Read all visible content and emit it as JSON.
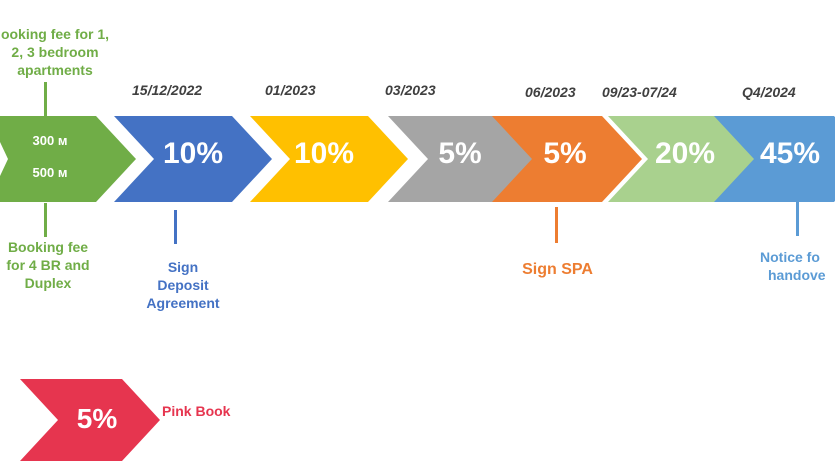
{
  "colors": {
    "green": "#70AD47",
    "blue": "#4472C4",
    "yellow": "#FFC000",
    "gray": "#A5A5A5",
    "orange": "#ED7D31",
    "lightgreen": "#A9D18E",
    "lightblue": "#5B9BD5",
    "pink": "#E6354F",
    "date_text": "#404040"
  },
  "booking": {
    "top_label": [
      "ooking fee for 1,",
      "2, 3 bedroom",
      "apartments"
    ],
    "amounts": [
      "300 м",
      "500 м"
    ],
    "bottom_label": [
      "Booking fee",
      "for 4 BR and",
      "Duplex"
    ]
  },
  "timeline": [
    {
      "date": "15/12/2022",
      "percent": "10%",
      "color": "blue",
      "note": [
        "Sign",
        "Deposit",
        "Agreement"
      ]
    },
    {
      "date": "01/2023",
      "percent": "10%",
      "color": "yellow",
      "note": []
    },
    {
      "date": "03/2023",
      "percent": "5%",
      "color": "gray",
      "note": []
    },
    {
      "date": "06/2023",
      "percent": "5%",
      "color": "orange",
      "note": [
        "Sign SPA"
      ]
    },
    {
      "date": "09/23-07/24",
      "percent": "20%",
      "color": "lightgreen",
      "note": []
    },
    {
      "date": "Q4/2024",
      "percent": "45%",
      "color": "lightblue",
      "note": [
        "Notice fo",
        "handove"
      ]
    }
  ],
  "final": {
    "percent": "5%",
    "label": "Pink Book",
    "color": "pink"
  }
}
